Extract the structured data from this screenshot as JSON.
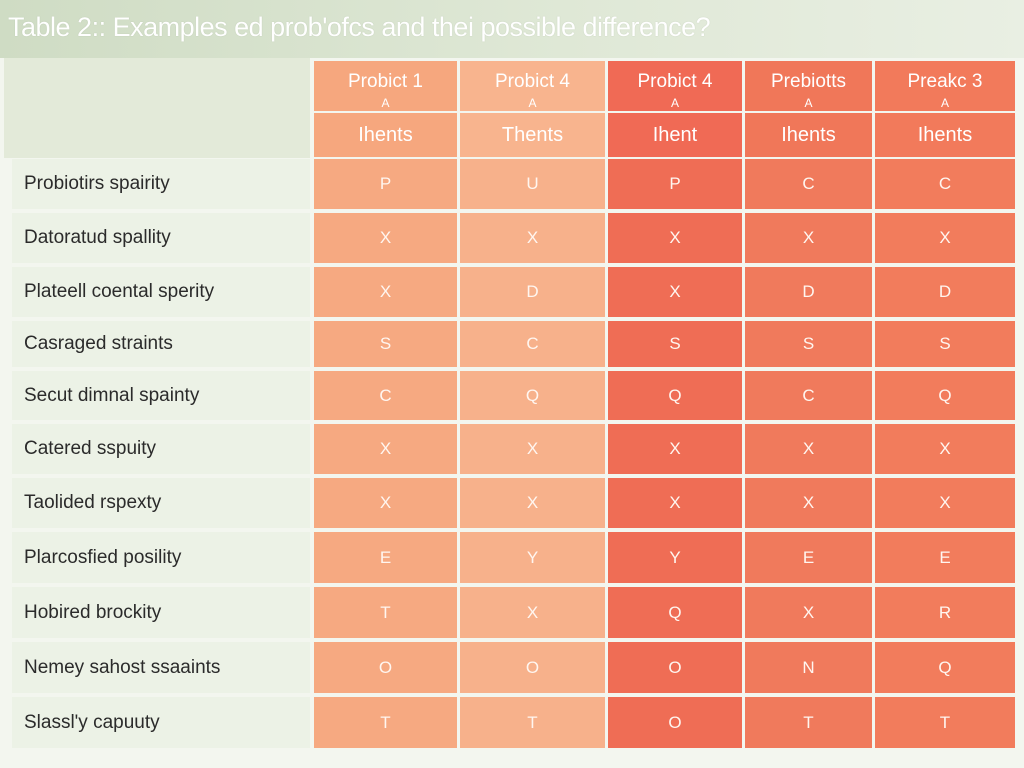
{
  "title": "Table 2::  Examples ed prob'ofcs and thei possible difference?",
  "columns": [
    {
      "name": "Probict 1",
      "sub": "A",
      "sub2": "Ihents"
    },
    {
      "name": "Probict 4",
      "sub": "A",
      "sub2": "Thents"
    },
    {
      "name": "Probict 4",
      "sub": "A",
      "sub2": "Ihent"
    },
    {
      "name": "Prebiotts",
      "sub": "A",
      "sub2": "Ihents"
    },
    {
      "name": "Preakc 3",
      "sub": "A",
      "sub2": "Ihents"
    }
  ],
  "rows": [
    {
      "label": "Probiotirs spairity",
      "cells": [
        "P",
        "U",
        "P",
        "C",
        "C"
      ]
    },
    {
      "label": "Datoratud spallity",
      "cells": [
        "X",
        "X",
        "X",
        "X",
        "X"
      ]
    },
    {
      "label": "Plateell coental sperity",
      "cells": [
        "X",
        "D",
        "X",
        "D",
        "D"
      ]
    },
    {
      "label": "Casraged straints",
      "cells": [
        "S",
        "C",
        "S",
        "S",
        "S"
      ]
    },
    {
      "label": "Secut dimnal spainty",
      "cells": [
        "C",
        "Q",
        "Q",
        "C",
        "Q"
      ]
    },
    {
      "label": "Catered sspuity",
      "cells": [
        "X",
        "X",
        "X",
        "X",
        "X"
      ]
    },
    {
      "label": "Taolided rspexty",
      "cells": [
        "X",
        "X",
        "X",
        "X",
        "X"
      ]
    },
    {
      "label": "Plarcosfied posility",
      "cells": [
        "E",
        "Y",
        "Y",
        "E",
        "E"
      ]
    },
    {
      "label": "Hobired brockity",
      "cells": [
        "T",
        "X",
        "Q",
        "X",
        "R"
      ]
    },
    {
      "label": "Nemey sahost ssaaints",
      "cells": [
        "O",
        "O",
        "O",
        "N",
        "Q"
      ]
    },
    {
      "label": "Slassl'y capuuty",
      "cells": [
        "T",
        "T",
        "O",
        "T",
        "T"
      ]
    }
  ]
}
